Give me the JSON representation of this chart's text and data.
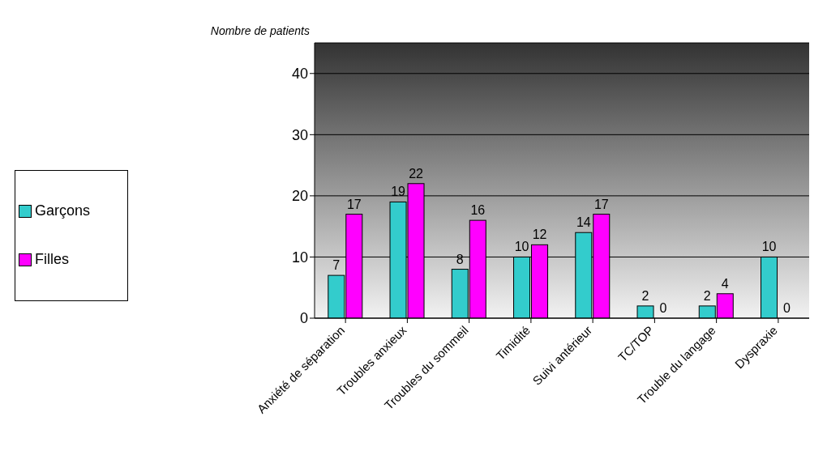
{
  "chart_data": {
    "type": "bar",
    "ylabel": "Nombre de patients",
    "categories": [
      "Anxiété de séparation",
      "Troubles anxieux",
      "Troubles du sommeil",
      "Timidité",
      "Suivi antérieur",
      "TC/TOP",
      "Trouble du langage",
      "Dyspraxie"
    ],
    "series": [
      {
        "name": "Garçons",
        "color": "#33cccc",
        "values": [
          7,
          19,
          8,
          10,
          14,
          2,
          2,
          10
        ]
      },
      {
        "name": "Filles",
        "color": "#ff00ff",
        "values": [
          17,
          22,
          16,
          12,
          17,
          0,
          4,
          0
        ]
      }
    ],
    "ylim": [
      0,
      45
    ],
    "yticks": [
      0,
      10,
      20,
      30,
      40
    ],
    "grid": "y",
    "legend": "left",
    "data_labels": true
  }
}
